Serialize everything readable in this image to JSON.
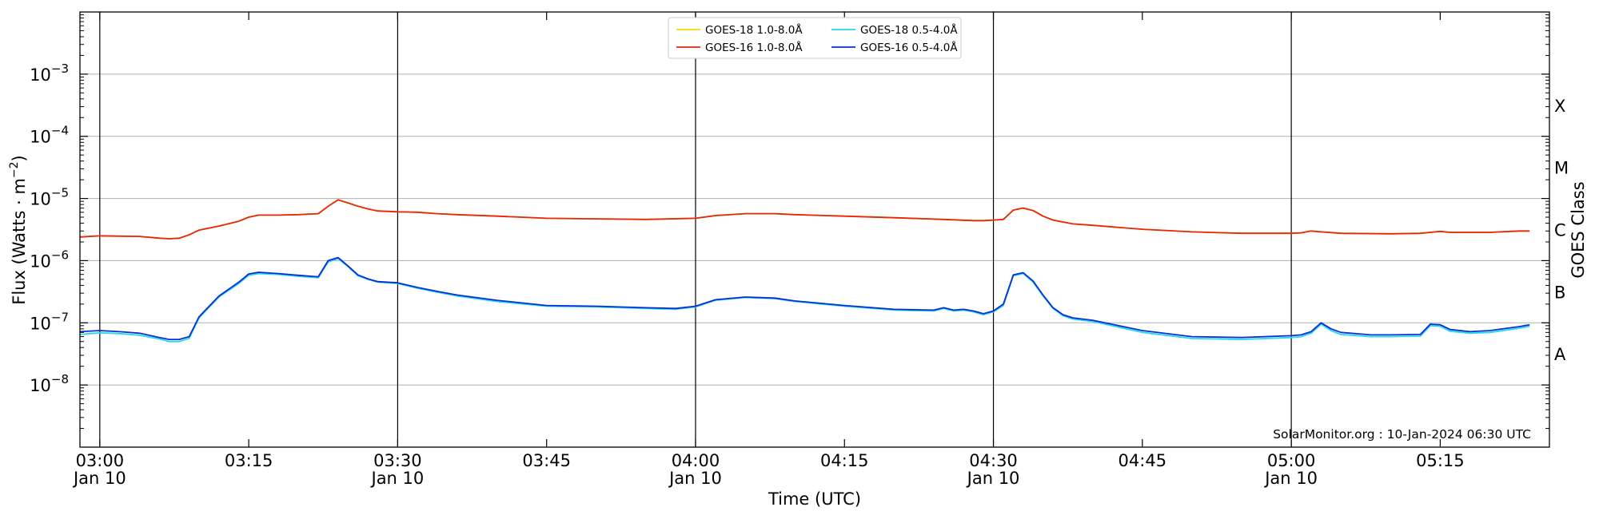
{
  "chart_data": {
    "type": "line",
    "title": "",
    "xlabel": "Time (UTC)",
    "ylabel_main": "Flux (Watts · m",
    "ylabel_sup": "−2",
    "ylabel_close": ")",
    "y2label": "GOES Class",
    "yscale": "log",
    "xlim": [
      "02:58",
      "05:26"
    ],
    "ylim": [
      1e-09,
      0.01
    ],
    "grid": "horizontal",
    "legend_position": "top-center",
    "credit": "SolarMonitor.org : 10-Jan-2024 06:30 UTC",
    "x_ticks": [
      {
        "time": "03:00",
        "date": "Jan 10",
        "major": true
      },
      {
        "time": "03:15",
        "date": "",
        "major": false
      },
      {
        "time": "03:30",
        "date": "Jan 10",
        "major": true
      },
      {
        "time": "03:45",
        "date": "",
        "major": false
      },
      {
        "time": "04:00",
        "date": "Jan 10",
        "major": true
      },
      {
        "time": "04:15",
        "date": "",
        "major": false
      },
      {
        "time": "04:30",
        "date": "Jan 10",
        "major": true
      },
      {
        "time": "04:45",
        "date": "",
        "major": false
      },
      {
        "time": "05:00",
        "date": "Jan 10",
        "major": true
      },
      {
        "time": "05:15",
        "date": "",
        "major": false
      }
    ],
    "y_ticks": [
      {
        "value": 1e-08,
        "base": "10",
        "exp": "−8"
      },
      {
        "value": 1e-07,
        "base": "10",
        "exp": "−7"
      },
      {
        "value": 1e-06,
        "base": "10",
        "exp": "−6"
      },
      {
        "value": 1e-05,
        "base": "10",
        "exp": "−5"
      },
      {
        "value": 0.0001,
        "base": "10",
        "exp": "−4"
      },
      {
        "value": 0.001,
        "base": "10",
        "exp": "−3"
      }
    ],
    "goes_classes": [
      {
        "label": "A",
        "value": 3.16e-08
      },
      {
        "label": "B",
        "value": 3.16e-07
      },
      {
        "label": "C",
        "value": 3.16e-06
      },
      {
        "label": "M",
        "value": 3.16e-05
      },
      {
        "label": "X",
        "value": 0.000316
      }
    ],
    "series": [
      {
        "name": "GOES-18 1.0-8.0Å",
        "color": "#ffd700",
        "x": [
          "02:58",
          "03:00",
          "03:04",
          "03:06",
          "03:07",
          "03:08",
          "03:09",
          "03:10",
          "03:12",
          "03:14",
          "03:15",
          "03:16",
          "03:18",
          "03:20",
          "03:22",
          "03:23",
          "03:24",
          "03:25",
          "03:26",
          "03:27",
          "03:28",
          "03:30",
          "03:32",
          "03:34",
          "03:36",
          "03:40",
          "03:45",
          "03:50",
          "03:55",
          "04:00",
          "04:02",
          "04:05",
          "04:08",
          "04:10",
          "04:15",
          "04:20",
          "04:25",
          "04:28",
          "04:29",
          "04:30",
          "04:31",
          "04:32",
          "04:33",
          "04:34",
          "04:35",
          "04:36",
          "04:38",
          "04:40",
          "04:45",
          "04:50",
          "04:55",
          "05:00",
          "05:01",
          "05:02",
          "05:03",
          "05:05",
          "05:10",
          "05:13",
          "05:14",
          "05:15",
          "05:16",
          "05:20",
          "05:23",
          "05:24"
        ],
        "values": [
          2.4e-06,
          2.5e-06,
          2.45e-06,
          2.3e-06,
          2.25e-06,
          2.3e-06,
          2.6e-06,
          3.1e-06,
          3.6e-06,
          4.3e-06,
          5e-06,
          5.4e-06,
          5.4e-06,
          5.5e-06,
          5.7e-06,
          7.5e-06,
          9.5e-06,
          8.5e-06,
          7.5e-06,
          6.8e-06,
          6.3e-06,
          6.1e-06,
          6e-06,
          5.7e-06,
          5.5e-06,
          5.2e-06,
          4.8e-06,
          4.7e-06,
          4.6e-06,
          4.8e-06,
          5.3e-06,
          5.7e-06,
          5.7e-06,
          5.5e-06,
          5.2e-06,
          4.9e-06,
          4.6e-06,
          4.4e-06,
          4.4e-06,
          4.5e-06,
          4.6e-06,
          6.5e-06,
          7e-06,
          6.4e-06,
          5.2e-06,
          4.5e-06,
          3.9e-06,
          3.7e-06,
          3.2e-06,
          2.9e-06,
          2.75e-06,
          2.75e-06,
          2.8e-06,
          3e-06,
          2.9e-06,
          2.75e-06,
          2.7e-06,
          2.75e-06,
          2.85e-06,
          2.95e-06,
          2.85e-06,
          2.85e-06,
          3e-06,
          3e-06
        ]
      },
      {
        "name": "GOES-16 1.0-8.0Å",
        "color": "#e8250e",
        "x": [
          "02:58",
          "03:00",
          "03:04",
          "03:06",
          "03:07",
          "03:08",
          "03:09",
          "03:10",
          "03:12",
          "03:14",
          "03:15",
          "03:16",
          "03:18",
          "03:20",
          "03:22",
          "03:23",
          "03:24",
          "03:25",
          "03:26",
          "03:27",
          "03:28",
          "03:30",
          "03:32",
          "03:34",
          "03:36",
          "03:40",
          "03:45",
          "03:50",
          "03:55",
          "04:00",
          "04:02",
          "04:05",
          "04:08",
          "04:10",
          "04:15",
          "04:20",
          "04:25",
          "04:28",
          "04:29",
          "04:30",
          "04:31",
          "04:32",
          "04:33",
          "04:34",
          "04:35",
          "04:36",
          "04:38",
          "04:40",
          "04:45",
          "04:50",
          "04:55",
          "05:00",
          "05:01",
          "05:02",
          "05:03",
          "05:05",
          "05:10",
          "05:13",
          "05:14",
          "05:15",
          "05:16",
          "05:20",
          "05:23",
          "05:24"
        ],
        "values": [
          2.4e-06,
          2.5e-06,
          2.45e-06,
          2.3e-06,
          2.25e-06,
          2.3e-06,
          2.6e-06,
          3.1e-06,
          3.6e-06,
          4.3e-06,
          5e-06,
          5.4e-06,
          5.4e-06,
          5.5e-06,
          5.7e-06,
          7.5e-06,
          9.5e-06,
          8.5e-06,
          7.5e-06,
          6.8e-06,
          6.3e-06,
          6.1e-06,
          6e-06,
          5.7e-06,
          5.5e-06,
          5.2e-06,
          4.8e-06,
          4.7e-06,
          4.6e-06,
          4.8e-06,
          5.3e-06,
          5.7e-06,
          5.7e-06,
          5.5e-06,
          5.2e-06,
          4.9e-06,
          4.6e-06,
          4.4e-06,
          4.4e-06,
          4.5e-06,
          4.6e-06,
          6.5e-06,
          7e-06,
          6.4e-06,
          5.2e-06,
          4.5e-06,
          3.9e-06,
          3.7e-06,
          3.2e-06,
          2.9e-06,
          2.75e-06,
          2.75e-06,
          2.8e-06,
          3e-06,
          2.9e-06,
          2.75e-06,
          2.7e-06,
          2.75e-06,
          2.85e-06,
          2.95e-06,
          2.85e-06,
          2.85e-06,
          3e-06,
          3e-06
        ]
      },
      {
        "name": "GOES-18 0.5-4.0Å",
        "color": "#22d8f0",
        "x": [
          "02:58",
          "03:00",
          "03:02",
          "03:04",
          "03:06",
          "03:07",
          "03:08",
          "03:09",
          "03:10",
          "03:12",
          "03:14",
          "03:15",
          "03:16",
          "03:18",
          "03:20",
          "03:22",
          "03:23",
          "03:24",
          "03:25",
          "03:26",
          "03:27",
          "03:28",
          "03:30",
          "03:32",
          "03:34",
          "03:36",
          "03:40",
          "03:45",
          "03:50",
          "03:55",
          "03:58",
          "04:00",
          "04:02",
          "04:05",
          "04:08",
          "04:10",
          "04:15",
          "04:20",
          "04:24",
          "04:25",
          "04:26",
          "04:27",
          "04:28",
          "04:29",
          "04:30",
          "04:31",
          "04:32",
          "04:33",
          "04:34",
          "04:35",
          "04:36",
          "04:37",
          "04:38",
          "04:40",
          "04:45",
          "04:50",
          "04:55",
          "05:00",
          "05:01",
          "05:02",
          "05:03",
          "05:04",
          "05:05",
          "05:08",
          "05:10",
          "05:13",
          "05:14",
          "05:15",
          "05:16",
          "05:18",
          "05:20",
          "05:23",
          "05:24"
        ],
        "values": [
          6.5e-08,
          6.9e-08,
          6.7e-08,
          6.3e-08,
          5.5e-08,
          5e-08,
          5e-08,
          5.6e-08,
          1.2e-07,
          2.6e-07,
          4.3e-07,
          5.8e-07,
          6.2e-07,
          6e-07,
          5.6e-07,
          5.3e-07,
          9.5e-07,
          1.08e-06,
          8e-07,
          5.7e-07,
          5e-07,
          4.5e-07,
          4.3e-07,
          3.6e-07,
          3.1e-07,
          2.7e-07,
          2.2e-07,
          1.85e-07,
          1.8e-07,
          1.7e-07,
          1.65e-07,
          1.8e-07,
          2.3e-07,
          2.55e-07,
          2.45e-07,
          2.2e-07,
          1.85e-07,
          1.6e-07,
          1.55e-07,
          1.7e-07,
          1.55e-07,
          1.6e-07,
          1.5e-07,
          1.35e-07,
          1.5e-07,
          1.9e-07,
          5.7e-07,
          6.2e-07,
          4.5e-07,
          2.7e-07,
          1.7e-07,
          1.3e-07,
          1.15e-07,
          1.05e-07,
          7e-08,
          5.6e-08,
          5.4e-08,
          5.8e-08,
          6e-08,
          6.8e-08,
          9.5e-08,
          7.5e-08,
          6.5e-08,
          6e-08,
          6e-08,
          6.1e-08,
          9e-08,
          8.8e-08,
          7.3e-08,
          6.8e-08,
          7e-08,
          8.2e-08,
          8.8e-08
        ]
      },
      {
        "name": "GOES-16 0.5-4.0Å",
        "color": "#0a2ed6",
        "x": [
          "02:58",
          "03:00",
          "03:02",
          "03:04",
          "03:06",
          "03:07",
          "03:08",
          "03:09",
          "03:10",
          "03:12",
          "03:14",
          "03:15",
          "03:16",
          "03:18",
          "03:20",
          "03:22",
          "03:23",
          "03:24",
          "03:25",
          "03:26",
          "03:27",
          "03:28",
          "03:30",
          "03:32",
          "03:34",
          "03:36",
          "03:40",
          "03:45",
          "03:50",
          "03:55",
          "03:58",
          "04:00",
          "04:02",
          "04:05",
          "04:08",
          "04:10",
          "04:15",
          "04:20",
          "04:24",
          "04:25",
          "04:26",
          "04:27",
          "04:28",
          "04:29",
          "04:30",
          "04:31",
          "04:32",
          "04:33",
          "04:34",
          "04:35",
          "04:36",
          "04:37",
          "04:38",
          "04:40",
          "04:45",
          "04:50",
          "04:55",
          "05:00",
          "05:01",
          "05:02",
          "05:03",
          "05:04",
          "05:05",
          "05:08",
          "05:10",
          "05:13",
          "05:14",
          "05:15",
          "05:16",
          "05:18",
          "05:20",
          "05:23",
          "05:24"
        ],
        "values": [
          7.2e-08,
          7.5e-08,
          7.2e-08,
          6.8e-08,
          5.8e-08,
          5.4e-08,
          5.4e-08,
          6e-08,
          1.25e-07,
          2.7e-07,
          4.5e-07,
          6.1e-07,
          6.5e-07,
          6.2e-07,
          5.8e-07,
          5.5e-07,
          1e-06,
          1.12e-06,
          8.2e-07,
          5.9e-07,
          5.1e-07,
          4.6e-07,
          4.4e-07,
          3.7e-07,
          3.2e-07,
          2.8e-07,
          2.3e-07,
          1.9e-07,
          1.85e-07,
          1.75e-07,
          1.7e-07,
          1.85e-07,
          2.35e-07,
          2.6e-07,
          2.5e-07,
          2.25e-07,
          1.9e-07,
          1.65e-07,
          1.6e-07,
          1.75e-07,
          1.6e-07,
          1.65e-07,
          1.55e-07,
          1.4e-07,
          1.55e-07,
          2e-07,
          5.9e-07,
          6.4e-07,
          4.7e-07,
          2.8e-07,
          1.75e-07,
          1.35e-07,
          1.2e-07,
          1.1e-07,
          7.5e-08,
          6e-08,
          5.8e-08,
          6.2e-08,
          6.4e-08,
          7.2e-08,
          1e-07,
          8e-08,
          7e-08,
          6.4e-08,
          6.4e-08,
          6.5e-08,
          9.5e-08,
          9.3e-08,
          7.8e-08,
          7.2e-08,
          7.5e-08,
          8.7e-08,
          9.3e-08
        ]
      }
    ]
  }
}
